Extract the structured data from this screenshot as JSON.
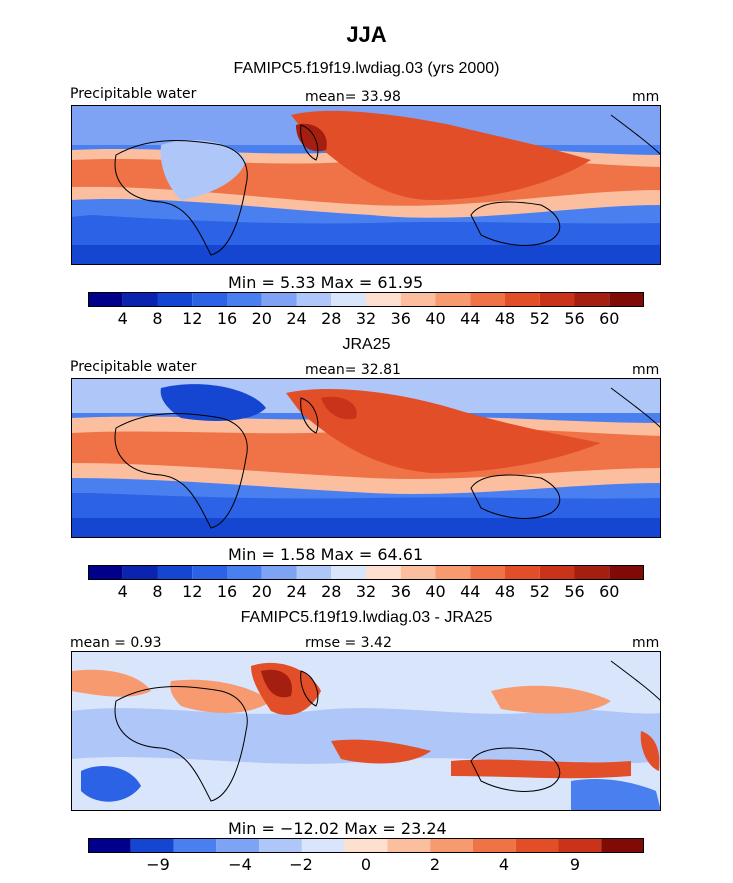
{
  "title": "JJA",
  "panels": [
    {
      "title": "FAMIPC5.f19f19.lwdiag.03 (yrs 2000)",
      "left_label": "Precipitable water",
      "center_label": "mean=  33.98",
      "right_label": "mm",
      "min_max": "Min =   5.33  Max =   61.95",
      "colorbar_ticks": [
        "4",
        "8",
        "12",
        "16",
        "20",
        "24",
        "28",
        "32",
        "36",
        "40",
        "44",
        "48",
        "52",
        "56",
        "60"
      ]
    },
    {
      "title": "JRA25",
      "left_label": "Precipitable water",
      "center_label": "mean=  32.81",
      "right_label": "mm",
      "min_max": "Min =   1.58  Max =   64.61",
      "colorbar_ticks": [
        "4",
        "8",
        "12",
        "16",
        "20",
        "24",
        "28",
        "32",
        "36",
        "40",
        "44",
        "48",
        "52",
        "56",
        "60"
      ]
    },
    {
      "title": "FAMIPC5.f19f19.lwdiag.03 - JRA25",
      "left_label": "mean =   0.93",
      "center_label": "rmse =   3.42",
      "right_label": "mm",
      "min_max": "Min = −12.02  Max =  23.24",
      "colorbar_ticks": [
        "−9",
        "−4",
        "−2",
        "0",
        "2",
        "4",
        "9"
      ]
    }
  ],
  "colors": {
    "colorbar": [
      "#00008b",
      "#0a24b0",
      "#1546d2",
      "#2b62e6",
      "#4a7ff0",
      "#7ea3f5",
      "#aec6f8",
      "#d8e5fb",
      "#fde0cf",
      "#fbbfa0",
      "#f79a70",
      "#f07348",
      "#e24e27",
      "#c8331a",
      "#a51f10",
      "#7f0a06"
    ],
    "diff_colorbar": [
      "#00008b",
      "#1546d2",
      "#4a7ff0",
      "#7ea3f5",
      "#aec6f8",
      "#d8e5fb",
      "#fde0cf",
      "#fbbfa0",
      "#f79a70",
      "#f07348",
      "#e24e27",
      "#c8331a",
      "#7f0a06"
    ],
    "land_outline": "#000000"
  }
}
